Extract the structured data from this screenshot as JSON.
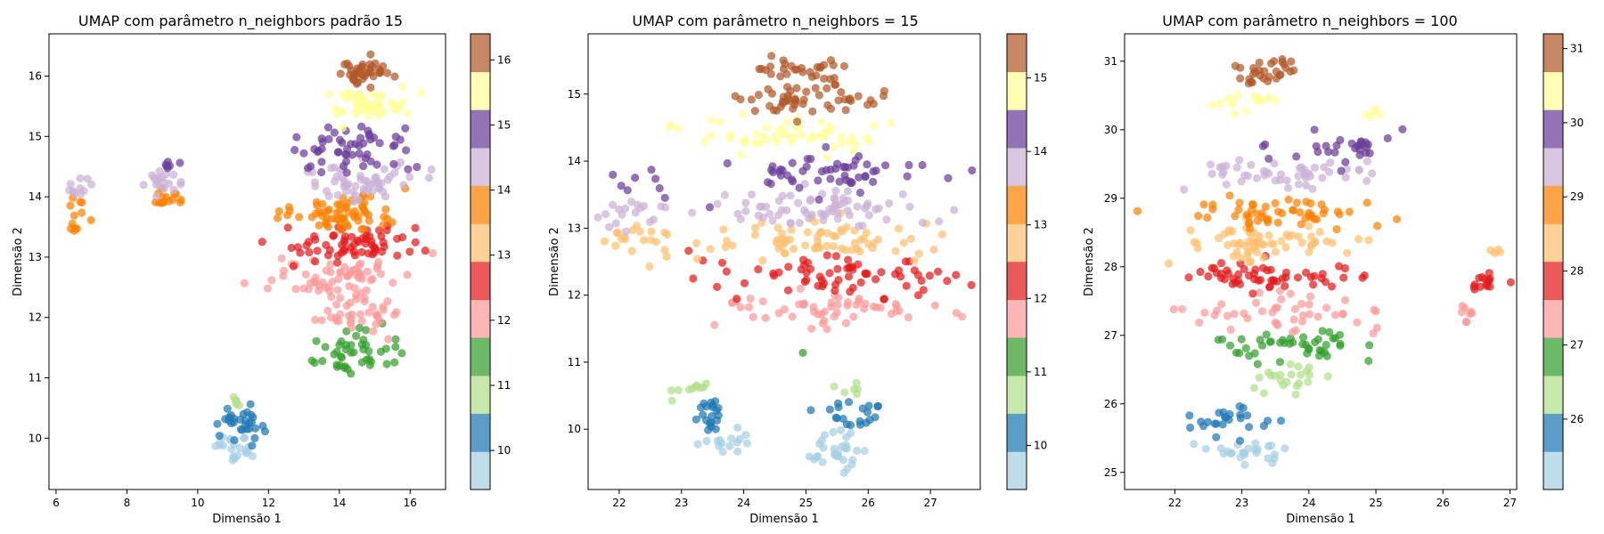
{
  "chart_data": [
    {
      "type": "scatter",
      "title": "UMAP com parâmetro n_neighbors padrão 15",
      "xlabel": "Dimensão 1",
      "ylabel": "Dimensão 2",
      "xlim": [
        5.8,
        17.0
      ],
      "ylim": [
        9.15,
        16.7
      ],
      "xticks": [
        6,
        8,
        10,
        12,
        14,
        16
      ],
      "yticks": [
        10,
        11,
        12,
        13,
        14,
        15,
        16
      ],
      "colorbar": {
        "range": [
          9.4,
          16.4
        ],
        "ticks": [
          10,
          11,
          12,
          13,
          14,
          15,
          16
        ],
        "cmap": "Paired"
      },
      "clusters": [
        {
          "value": 9.6,
          "cx": 11.1,
          "cy": 9.85,
          "sx": 0.35,
          "sy": 0.18,
          "n": 22
        },
        {
          "value": 10.3,
          "cx": 11.2,
          "cy": 10.25,
          "sx": 0.45,
          "sy": 0.2,
          "n": 30
        },
        {
          "value": 10.8,
          "cx": 11.05,
          "cy": 10.65,
          "sx": 0.2,
          "sy": 0.1,
          "n": 6
        },
        {
          "value": 11.3,
          "cx": 14.2,
          "cy": 11.4,
          "sx": 0.8,
          "sy": 0.25,
          "n": 45
        },
        {
          "value": 11.8,
          "cx": 14.3,
          "cy": 12.1,
          "sx": 1.0,
          "sy": 0.25,
          "n": 40
        },
        {
          "value": 12.3,
          "cx": 14.0,
          "cy": 12.7,
          "sx": 1.3,
          "sy": 0.2,
          "n": 60
        },
        {
          "value": 12.8,
          "cx": 14.4,
          "cy": 13.2,
          "sx": 1.3,
          "sy": 0.2,
          "n": 65
        },
        {
          "value": 13.6,
          "cx": 14.2,
          "cy": 13.75,
          "sx": 1.1,
          "sy": 0.22,
          "n": 65
        },
        {
          "value": 13.7,
          "cx": 6.6,
          "cy": 13.75,
          "sx": 0.25,
          "sy": 0.2,
          "n": 12
        },
        {
          "value": 13.7,
          "cx": 9.1,
          "cy": 13.95,
          "sx": 0.35,
          "sy": 0.12,
          "n": 15
        },
        {
          "value": 14.3,
          "cx": 14.5,
          "cy": 14.25,
          "sx": 1.1,
          "sy": 0.2,
          "n": 55
        },
        {
          "value": 14.3,
          "cx": 6.7,
          "cy": 14.15,
          "sx": 0.25,
          "sy": 0.1,
          "n": 10
        },
        {
          "value": 14.3,
          "cx": 8.9,
          "cy": 14.3,
          "sx": 0.5,
          "sy": 0.15,
          "n": 18
        },
        {
          "value": 14.8,
          "cx": 14.3,
          "cy": 14.8,
          "sx": 1.0,
          "sy": 0.25,
          "n": 55
        },
        {
          "value": 15.0,
          "cx": 9.3,
          "cy": 14.55,
          "sx": 0.15,
          "sy": 0.08,
          "n": 6
        },
        {
          "value": 15.6,
          "cx": 14.8,
          "cy": 15.55,
          "sx": 0.8,
          "sy": 0.18,
          "n": 55
        },
        {
          "value": 16.1,
          "cx": 14.7,
          "cy": 16.05,
          "sx": 0.55,
          "sy": 0.15,
          "n": 40
        }
      ]
    },
    {
      "type": "scatter",
      "title": "UMAP com parâmetro n_neighbors = 15",
      "xlabel": "Dimensão 1",
      "ylabel": "Dimensão 2",
      "xlim": [
        21.5,
        27.8
      ],
      "ylim": [
        9.1,
        15.9
      ],
      "xticks": [
        22,
        23,
        24,
        25,
        26,
        27
      ],
      "yticks": [
        10,
        11,
        12,
        13,
        14,
        15
      ],
      "colorbar": {
        "range": [
          9.4,
          15.6
        ],
        "ticks": [
          10,
          11,
          12,
          13,
          14,
          15
        ],
        "cmap": "Paired"
      },
      "clusters": [
        {
          "value": 9.6,
          "cx": 23.7,
          "cy": 9.85,
          "sx": 0.3,
          "sy": 0.15,
          "n": 15
        },
        {
          "value": 9.6,
          "cx": 25.5,
          "cy": 9.7,
          "sx": 0.35,
          "sy": 0.2,
          "n": 30
        },
        {
          "value": 10.3,
          "cx": 23.5,
          "cy": 10.2,
          "sx": 0.25,
          "sy": 0.2,
          "n": 20
        },
        {
          "value": 10.3,
          "cx": 25.7,
          "cy": 10.2,
          "sx": 0.3,
          "sy": 0.15,
          "n": 20
        },
        {
          "value": 10.8,
          "cx": 23.3,
          "cy": 10.6,
          "sx": 0.3,
          "sy": 0.15,
          "n": 10
        },
        {
          "value": 10.8,
          "cx": 25.9,
          "cy": 10.6,
          "sx": 0.2,
          "sy": 0.12,
          "n": 6
        },
        {
          "value": 11.4,
          "cx": 25.0,
          "cy": 11.1,
          "sx": 0.05,
          "sy": 0.05,
          "n": 1
        },
        {
          "value": 11.8,
          "cx": 25.4,
          "cy": 11.8,
          "sx": 1.2,
          "sy": 0.15,
          "n": 55
        },
        {
          "value": 12.3,
          "cx": 25.5,
          "cy": 12.3,
          "sx": 1.3,
          "sy": 0.2,
          "n": 70
        },
        {
          "value": 12.8,
          "cx": 25.3,
          "cy": 12.8,
          "sx": 1.3,
          "sy": 0.2,
          "n": 70
        },
        {
          "value": 12.8,
          "cx": 22.3,
          "cy": 12.85,
          "sx": 0.35,
          "sy": 0.25,
          "n": 20
        },
        {
          "value": 13.6,
          "cx": 25.2,
          "cy": 13.3,
          "sx": 1.2,
          "sy": 0.2,
          "n": 70
        },
        {
          "value": 13.6,
          "cx": 22.2,
          "cy": 13.25,
          "sx": 0.3,
          "sy": 0.15,
          "n": 18
        },
        {
          "value": 14.3,
          "cx": 25.3,
          "cy": 13.85,
          "sx": 1.0,
          "sy": 0.2,
          "n": 55
        },
        {
          "value": 14.3,
          "cx": 22.4,
          "cy": 13.7,
          "sx": 0.3,
          "sy": 0.15,
          "n": 8
        },
        {
          "value": 14.8,
          "cx": 25.0,
          "cy": 14.4,
          "sx": 1.1,
          "sy": 0.15,
          "n": 55
        },
        {
          "value": 15.2,
          "cx": 25.0,
          "cy": 14.9,
          "sx": 0.9,
          "sy": 0.15,
          "n": 50
        },
        {
          "value": 15.5,
          "cx": 24.9,
          "cy": 15.35,
          "sx": 0.5,
          "sy": 0.12,
          "n": 30
        }
      ]
    },
    {
      "type": "scatter",
      "title": "UMAP com parâmetro n_neighbors = 100",
      "xlabel": "Dimensão 1",
      "ylabel": "Dimensão 2",
      "xlim": [
        21.25,
        27.1
      ],
      "ylim": [
        24.75,
        31.4
      ],
      "xticks": [
        22,
        23,
        24,
        25,
        26,
        27
      ],
      "yticks": [
        25,
        26,
        27,
        28,
        29,
        30,
        31
      ],
      "colorbar": {
        "range": [
          25.05,
          31.2
        ],
        "ticks": [
          26,
          27,
          28,
          29,
          30,
          31
        ],
        "cmap": "Paired"
      },
      "clusters": [
        {
          "value": 25.3,
          "cx": 23.0,
          "cy": 25.3,
          "sx": 0.35,
          "sy": 0.12,
          "n": 25
        },
        {
          "value": 25.8,
          "cx": 22.8,
          "cy": 25.75,
          "sx": 0.45,
          "sy": 0.15,
          "n": 25
        },
        {
          "value": 26.4,
          "cx": 23.7,
          "cy": 26.35,
          "sx": 0.4,
          "sy": 0.15,
          "n": 22
        },
        {
          "value": 26.8,
          "cx": 23.8,
          "cy": 26.85,
          "sx": 0.8,
          "sy": 0.15,
          "n": 45
        },
        {
          "value": 27.3,
          "cx": 23.6,
          "cy": 27.35,
          "sx": 1.0,
          "sy": 0.2,
          "n": 45
        },
        {
          "value": 27.3,
          "cx": 26.4,
          "cy": 27.3,
          "sx": 0.1,
          "sy": 0.15,
          "n": 8
        },
        {
          "value": 27.8,
          "cx": 23.4,
          "cy": 27.85,
          "sx": 1.0,
          "sy": 0.15,
          "n": 55
        },
        {
          "value": 27.8,
          "cx": 26.6,
          "cy": 27.75,
          "sx": 0.2,
          "sy": 0.1,
          "n": 15
        },
        {
          "value": 28.3,
          "cx": 23.5,
          "cy": 28.35,
          "sx": 1.0,
          "sy": 0.2,
          "n": 65
        },
        {
          "value": 28.3,
          "cx": 26.75,
          "cy": 28.25,
          "sx": 0.1,
          "sy": 0.06,
          "n": 4
        },
        {
          "value": 28.8,
          "cx": 23.5,
          "cy": 28.8,
          "sx": 1.0,
          "sy": 0.15,
          "n": 55
        },
        {
          "value": 29.3,
          "cx": 23.6,
          "cy": 29.35,
          "sx": 1.0,
          "sy": 0.15,
          "n": 50
        },
        {
          "value": 29.8,
          "cx": 24.6,
          "cy": 29.75,
          "sx": 0.6,
          "sy": 0.15,
          "n": 30
        },
        {
          "value": 30.3,
          "cx": 23.2,
          "cy": 30.45,
          "sx": 0.3,
          "sy": 0.12,
          "n": 15
        },
        {
          "value": 30.3,
          "cx": 25.0,
          "cy": 30.2,
          "sx": 0.15,
          "sy": 0.06,
          "n": 5
        },
        {
          "value": 30.9,
          "cx": 23.4,
          "cy": 30.85,
          "sx": 0.4,
          "sy": 0.15,
          "n": 30
        }
      ]
    }
  ]
}
